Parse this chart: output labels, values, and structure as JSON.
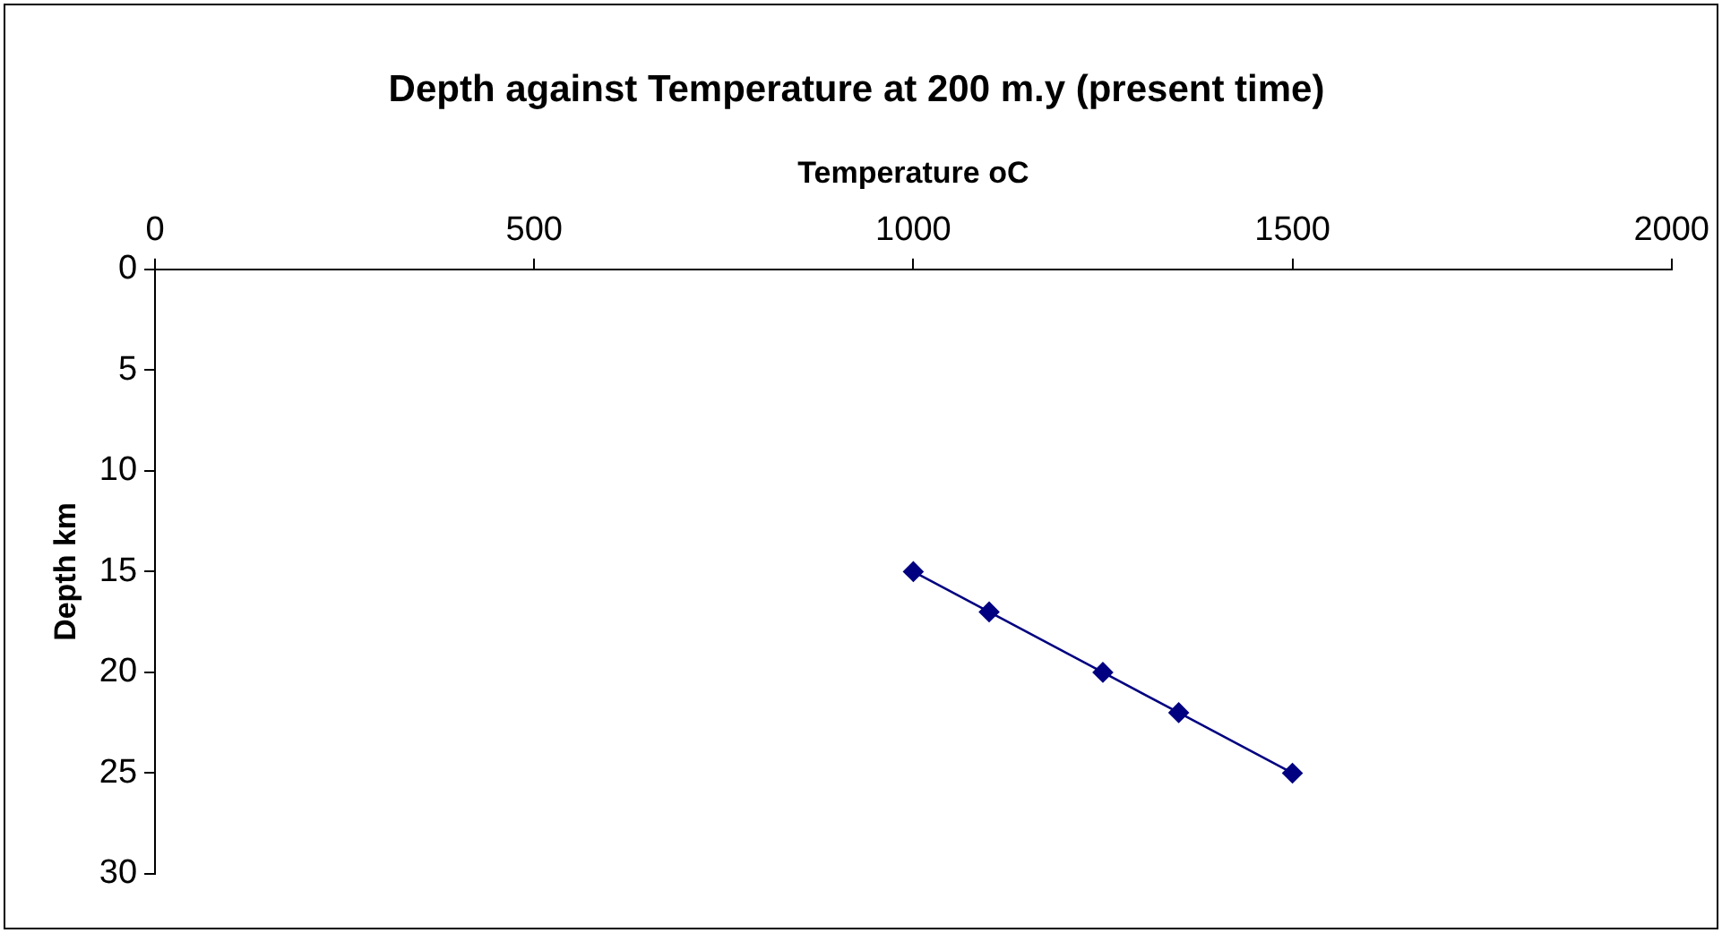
{
  "chart_data": {
    "type": "line",
    "title": "Depth against Temperature at 200 m.y (present time)",
    "xlabel": "Temperature oC",
    "ylabel": "Depth km",
    "x": [
      1000,
      1100,
      1250,
      1350,
      1500
    ],
    "series": [
      {
        "color": "#000080",
        "values": [
          15,
          17,
          20,
          22,
          25
        ]
      }
    ],
    "xlim": [
      0,
      2000
    ],
    "xticks": [
      0,
      500,
      1000,
      1500,
      2000
    ],
    "ylim": [
      30,
      0
    ],
    "yticks": [
      0,
      5,
      10,
      15,
      20,
      25,
      30
    ],
    "grid": false,
    "legend": false,
    "marker": "diamond",
    "line_style": "solid"
  }
}
